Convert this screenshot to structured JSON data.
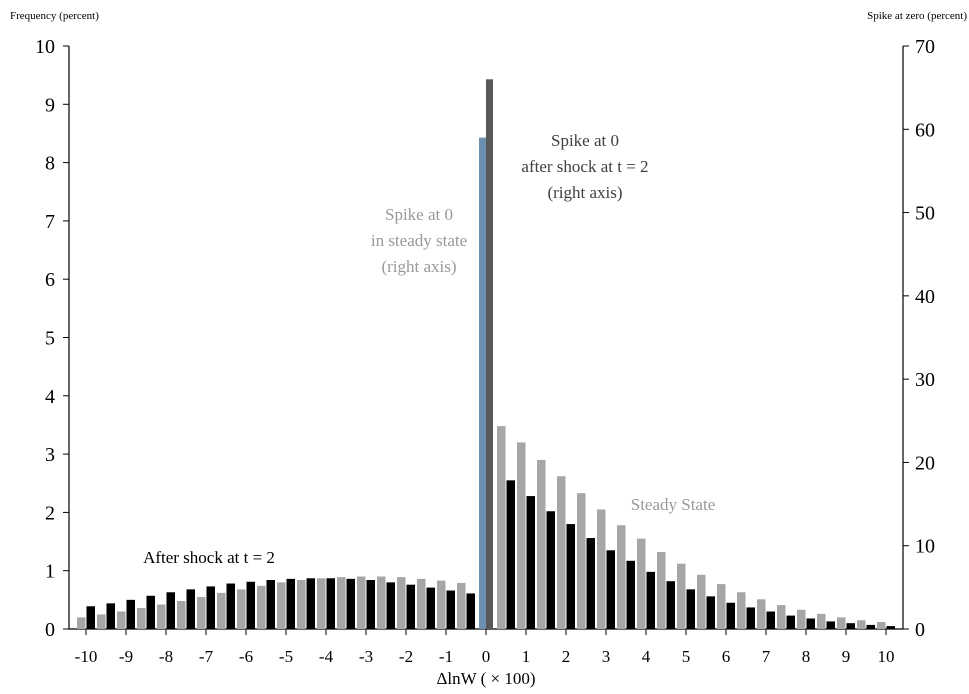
{
  "chart_data": {
    "type": "bar",
    "left_axis_label": "Frequency (percent)",
    "right_axis_label": "Spike at zero (percent)",
    "xlabel": "ΔlnW ( × 100)",
    "ylim_left": [
      0,
      10
    ],
    "ylim_right": [
      0,
      70
    ],
    "yticks_left": [
      "0",
      "1",
      "2",
      "3",
      "4",
      "5",
      "6",
      "7",
      "8",
      "9",
      "10"
    ],
    "yticks_right": [
      "0",
      "10",
      "20",
      "30",
      "40",
      "50",
      "60",
      "70"
    ],
    "xticks": [
      "-10",
      "-9",
      "-8",
      "-7",
      "-6",
      "-5",
      "-4",
      "-3",
      "-2",
      "-1",
      "0",
      "1",
      "2",
      "3",
      "4",
      "5",
      "6",
      "7",
      "8",
      "9",
      "10"
    ],
    "x": [
      -10,
      -9.5,
      -9,
      -8.5,
      -8,
      -7.5,
      -7,
      -6.5,
      -6,
      -5.5,
      -5,
      -4.5,
      -4,
      -3.5,
      -3,
      -2.5,
      -2,
      -1.5,
      -1,
      -0.5,
      0.5,
      1,
      1.5,
      2,
      2.5,
      3,
      3.5,
      4,
      4.5,
      5,
      5.5,
      6,
      6.5,
      7,
      7.5,
      8,
      8.5,
      9,
      9.5,
      10
    ],
    "series": [
      {
        "key": "steady",
        "color": "#a6a6a6",
        "values": [
          0.2,
          0.25,
          0.3,
          0.36,
          0.42,
          0.48,
          0.55,
          0.62,
          0.68,
          0.74,
          0.8,
          0.84,
          0.87,
          0.89,
          0.9,
          0.9,
          0.89,
          0.86,
          0.83,
          0.79,
          3.48,
          3.2,
          2.9,
          2.62,
          2.33,
          2.05,
          1.78,
          1.55,
          1.32,
          1.12,
          0.93,
          0.77,
          0.63,
          0.51,
          0.41,
          0.33,
          0.26,
          0.2,
          0.15,
          0.12
        ]
      },
      {
        "key": "shock",
        "color": "#000000",
        "values": [
          0.39,
          0.44,
          0.5,
          0.57,
          0.63,
          0.68,
          0.73,
          0.78,
          0.81,
          0.84,
          0.86,
          0.87,
          0.87,
          0.86,
          0.84,
          0.8,
          0.76,
          0.71,
          0.66,
          0.61,
          2.55,
          2.28,
          2.02,
          1.8,
          1.56,
          1.35,
          1.17,
          0.98,
          0.82,
          0.68,
          0.56,
          0.45,
          0.37,
          0.3,
          0.23,
          0.18,
          0.13,
          0.1,
          0.07,
          0.05
        ]
      }
    ],
    "spikes": [
      {
        "key": "steady",
        "color": "#6d8fb0",
        "value_right_axis": 59
      },
      {
        "key": "shock",
        "color": "#595959",
        "value_right_axis": 66
      }
    ],
    "annotations": {
      "spike_steady": [
        "Spike at 0",
        "in steady state",
        "(right axis)"
      ],
      "spike_shock": [
        "Spike at 0",
        "after shock at t = 2",
        "(right axis)"
      ],
      "steady_state": "Steady State",
      "after_shock": "After shock at t = 2"
    },
    "annotation_colors": {
      "steady": "#999999",
      "shock": "#404040",
      "after": "#000000"
    }
  }
}
